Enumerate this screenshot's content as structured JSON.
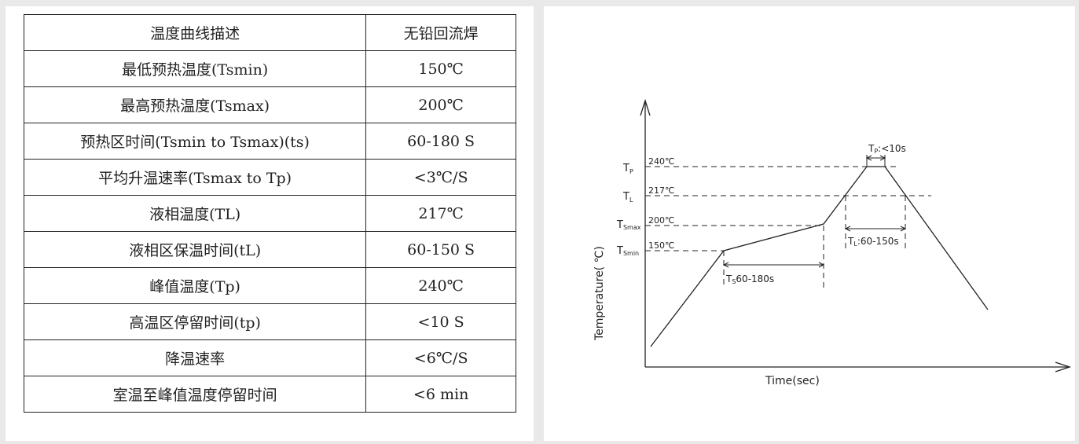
{
  "table": {
    "header": [
      "温度曲线描述",
      "无铅回流焊"
    ],
    "rows": [
      [
        "最低预热温度(Tsmin)",
        "150℃"
      ],
      [
        "最高预热温度(Tsmax)",
        "200℃"
      ],
      [
        "预热区时间(Tsmin to Tsmax)(ts)",
        "60-180 S"
      ],
      [
        "平均升温速率(Tsmax to Tp)",
        "<3℃/S"
      ],
      [
        "液相温度(TL)",
        "217℃"
      ],
      [
        "液相区保温时间(tL)",
        "60-150 S"
      ],
      [
        "峰值温度(Tp)",
        "240℃"
      ],
      [
        "高温区停留时间(tp)",
        "<10 S"
      ],
      [
        "降温速率",
        "<6℃/S"
      ],
      [
        "室温至峰值温度停留时间",
        "<6 min"
      ]
    ]
  },
  "chart_data": {
    "type": "line",
    "xlabel": "Time(sec)",
    "ylabel": "Temperature( ℃)",
    "levels": [
      {
        "symbol": "T",
        "sub": "P",
        "value": "240℃"
      },
      {
        "symbol": "T",
        "sub": "L",
        "value": "217℃"
      },
      {
        "symbol": "T",
        "sub": "Smax",
        "value": "200℃"
      },
      {
        "symbol": "T",
        "sub": "Smin",
        "value": "150℃"
      }
    ],
    "annotations": [
      {
        "symbol": "T",
        "sub": "P",
        "text": ":<10s"
      },
      {
        "symbol": "T",
        "sub": "L",
        "text": ":60-150s"
      },
      {
        "symbol": "T",
        "sub": "S",
        "text": "60-180s"
      }
    ]
  }
}
